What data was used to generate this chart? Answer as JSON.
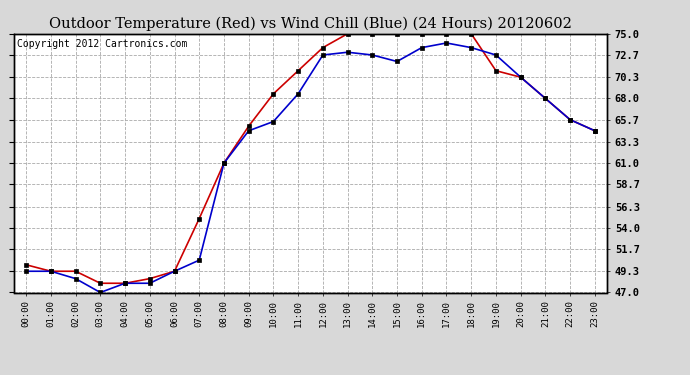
{
  "title": "Outdoor Temperature (Red) vs Wind Chill (Blue) (24 Hours) 20120602",
  "copyright": "Copyright 2012 Cartronics.com",
  "x_labels": [
    "00:00",
    "01:00",
    "02:00",
    "03:00",
    "04:00",
    "05:00",
    "06:00",
    "07:00",
    "08:00",
    "09:00",
    "10:00",
    "11:00",
    "12:00",
    "13:00",
    "14:00",
    "15:00",
    "16:00",
    "17:00",
    "18:00",
    "19:00",
    "20:00",
    "21:00",
    "22:00",
    "23:00"
  ],
  "temp_red": [
    50.0,
    49.3,
    49.3,
    48.0,
    48.0,
    48.5,
    49.3,
    55.0,
    61.0,
    65.0,
    68.5,
    71.0,
    73.5,
    75.0,
    75.0,
    75.0,
    75.0,
    75.0,
    75.0,
    71.0,
    70.3,
    68.0,
    65.7,
    64.5
  ],
  "wind_chill_blue": [
    49.3,
    49.3,
    48.5,
    47.0,
    48.0,
    48.0,
    49.3,
    50.5,
    61.0,
    64.5,
    65.5,
    68.5,
    72.7,
    73.0,
    72.7,
    72.0,
    73.5,
    74.0,
    73.5,
    72.7,
    70.3,
    68.0,
    65.7,
    64.5
  ],
  "ylim": [
    47.0,
    75.0
  ],
  "yticks": [
    47.0,
    49.3,
    51.7,
    54.0,
    56.3,
    58.7,
    61.0,
    63.3,
    65.7,
    68.0,
    70.3,
    72.7,
    75.0
  ],
  "bg_color": "#d8d8d8",
  "plot_bg": "#ffffff",
  "red_color": "#cc0000",
  "blue_color": "#0000cc",
  "grid_color": "#aaaaaa",
  "title_fontsize": 10.5,
  "copyright_fontsize": 7
}
